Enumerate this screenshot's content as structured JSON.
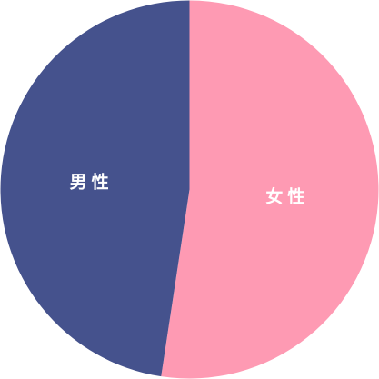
{
  "chart_data": {
    "type": "pie",
    "title": "",
    "categories": [
      "女性",
      "男性"
    ],
    "values": [
      52.4,
      47.6
    ],
    "unit": "%",
    "colors": [
      "#fe9ab3",
      "#45528d"
    ],
    "legend": "none",
    "direction": "clockwise-from-top"
  }
}
